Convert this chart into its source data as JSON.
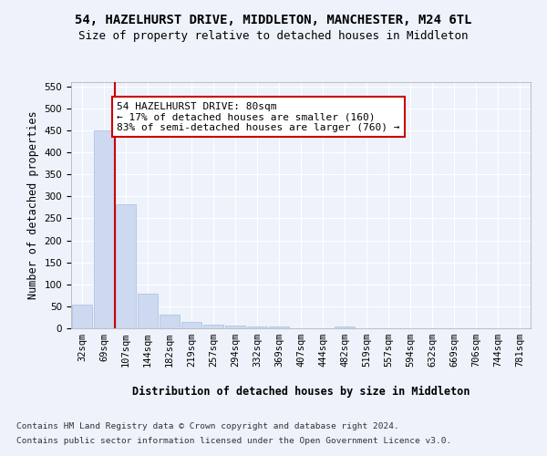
{
  "title_line1": "54, HAZELHURST DRIVE, MIDDLETON, MANCHESTER, M24 6TL",
  "title_line2": "Size of property relative to detached houses in Middleton",
  "xlabel": "Distribution of detached houses by size in Middleton",
  "ylabel": "Number of detached properties",
  "bar_labels": [
    "32sqm",
    "69sqm",
    "107sqm",
    "144sqm",
    "182sqm",
    "219sqm",
    "257sqm",
    "294sqm",
    "332sqm",
    "369sqm",
    "407sqm",
    "444sqm",
    "482sqm",
    "519sqm",
    "557sqm",
    "594sqm",
    "632sqm",
    "669sqm",
    "706sqm",
    "744sqm",
    "781sqm"
  ],
  "bar_values": [
    53,
    451,
    282,
    78,
    32,
    14,
    9,
    7,
    4,
    4,
    0,
    0,
    5,
    0,
    0,
    0,
    0,
    0,
    0,
    0,
    0
  ],
  "bar_color": "#ccd9f0",
  "bar_edge_color": "#a8bedd",
  "vline_x": 1.5,
  "vline_color": "#cc0000",
  "annotation_text": "54 HAZELHURST DRIVE: 80sqm\n← 17% of detached houses are smaller (160)\n83% of semi-detached houses are larger (760) →",
  "annotation_box_color": "#ffffff",
  "annotation_box_edge_color": "#cc0000",
  "ylim": [
    0,
    560
  ],
  "yticks": [
    0,
    50,
    100,
    150,
    200,
    250,
    300,
    350,
    400,
    450,
    500,
    550
  ],
  "footer_line1": "Contains HM Land Registry data © Crown copyright and database right 2024.",
  "footer_line2": "Contains public sector information licensed under the Open Government Licence v3.0.",
  "background_color": "#eef2fb",
  "grid_color": "#ffffff",
  "title_fontsize": 10,
  "subtitle_fontsize": 9,
  "axis_label_fontsize": 8.5,
  "tick_fontsize": 7.5,
  "annotation_fontsize": 8,
  "footer_fontsize": 6.8
}
